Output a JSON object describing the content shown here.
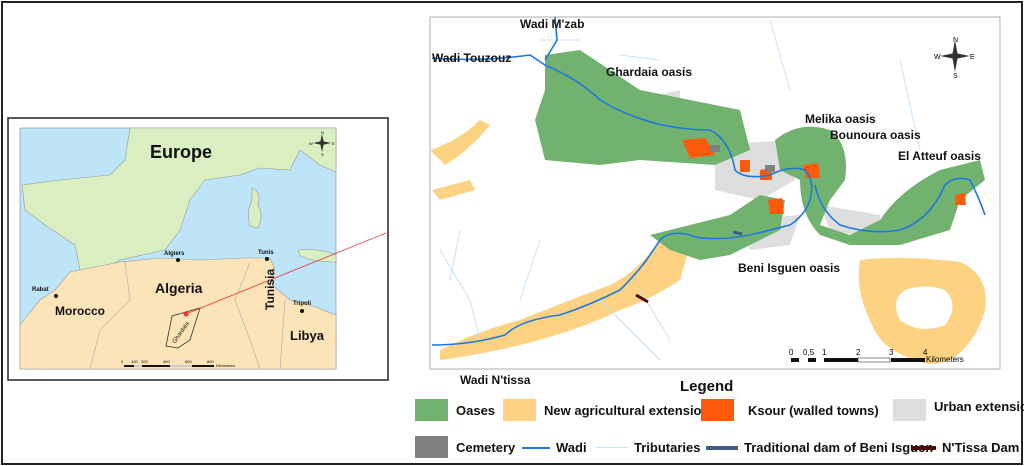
{
  "inset_map": {
    "regions": [
      "Europe",
      "Algeria",
      "Morocco",
      "Tunisia",
      "Libya"
    ],
    "cities": [
      "Algiers",
      "Tunis",
      "Rabat",
      "Tripoli"
    ],
    "province": "Ghardaia",
    "scale_ticks": [
      "0",
      "100",
      "200",
      "400",
      "600",
      "800"
    ],
    "scale_unit": "Kilometres",
    "compass": {
      "n": "N",
      "s": "S",
      "e": "E",
      "w": "W"
    }
  },
  "main_map": {
    "wadis": [
      "Wadi M'zab",
      "Wadi Touzouz",
      "Wadi N'tissa"
    ],
    "oases": [
      "Ghardaia oasis",
      "Melika oasis",
      "Bounoura oasis",
      "El Atteuf oasis",
      "Beni Isguen oasis"
    ],
    "scale_ticks": [
      "0",
      "0,5",
      "1",
      "2",
      "3",
      "4"
    ],
    "scale_unit": "Kilometers",
    "compass": {
      "n": "N",
      "s": "S",
      "e": "E",
      "w": "W"
    }
  },
  "legend": {
    "title": "Legend",
    "items": [
      {
        "label": "Oases",
        "color": "#72b26f",
        "kind": "fill"
      },
      {
        "label": "New agricultural extensions",
        "color": "#fdd283",
        "kind": "fill"
      },
      {
        "label": "Ksour (walled towns)",
        "color": "#fe5a0a",
        "kind": "fill"
      },
      {
        "label": "Urban extensions",
        "color": "#dedede",
        "kind": "fill"
      },
      {
        "label": "Cemetery",
        "color": "#808080",
        "kind": "fill"
      },
      {
        "label": "Wadi",
        "color": "#1f78e0",
        "kind": "line"
      },
      {
        "label": "Tributaries",
        "color": "#c8e0f8",
        "kind": "line"
      },
      {
        "label": "Traditional dam of Beni Isguen",
        "color": "#3e5f8a",
        "kind": "line"
      },
      {
        "label": "N'Tissa Dam",
        "color": "#4a0a0a",
        "kind": "line"
      }
    ]
  },
  "colors": {
    "sea": "#bde4f7",
    "europe": "#d9efc2",
    "africa": "#fde4b8",
    "pointer": "#ee3333"
  }
}
